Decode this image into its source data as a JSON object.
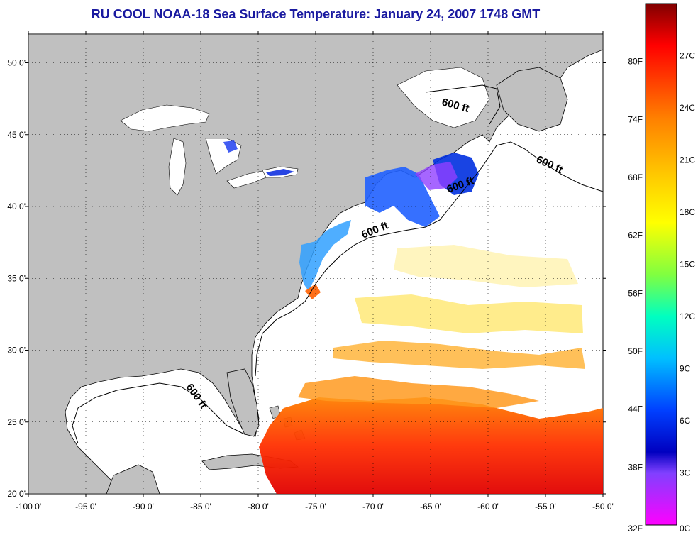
{
  "title": "RU COOL  NOAA-18  Sea Surface Temperature:  January 24, 2007 1748 GMT",
  "map": {
    "lon_range": [
      -100,
      -50
    ],
    "lat_range": [
      20,
      52
    ],
    "lon_ticks": [
      "-100 0'",
      "-95 0'",
      "-90 0'",
      "-85 0'",
      "-80 0'",
      "-75 0'",
      "-70 0'",
      "-65 0'",
      "-60 0'",
      "-55 0'",
      "-50 0'"
    ],
    "lat_ticks": [
      "50 0'",
      "45 0'",
      "40 0'",
      "35 0'",
      "30 0'",
      "25 0'",
      "20 0'"
    ],
    "contour_labels": [
      "600 ft",
      "600 ft",
      "600 ft",
      "600 ft",
      "600 ft"
    ],
    "land_color": "#c0c0c0",
    "grid": "dotted"
  },
  "colorbar": {
    "fahrenheit_labels": [
      "80F",
      "74F",
      "68F",
      "62F",
      "56F",
      "50F",
      "44F",
      "38F",
      "32F"
    ],
    "celsius_labels": [
      "27C",
      "24C",
      "21C",
      "18C",
      "15C",
      "12C",
      "9C",
      "6C",
      "3C",
      "0C"
    ],
    "colors": [
      "#8b0000",
      "#ff0000",
      "#ff8000",
      "#ffd000",
      "#ffff00",
      "#80ff40",
      "#00ffc0",
      "#00c0ff",
      "#0040ff",
      "#0000c0",
      "#8000ff",
      "#ff00ff"
    ]
  }
}
